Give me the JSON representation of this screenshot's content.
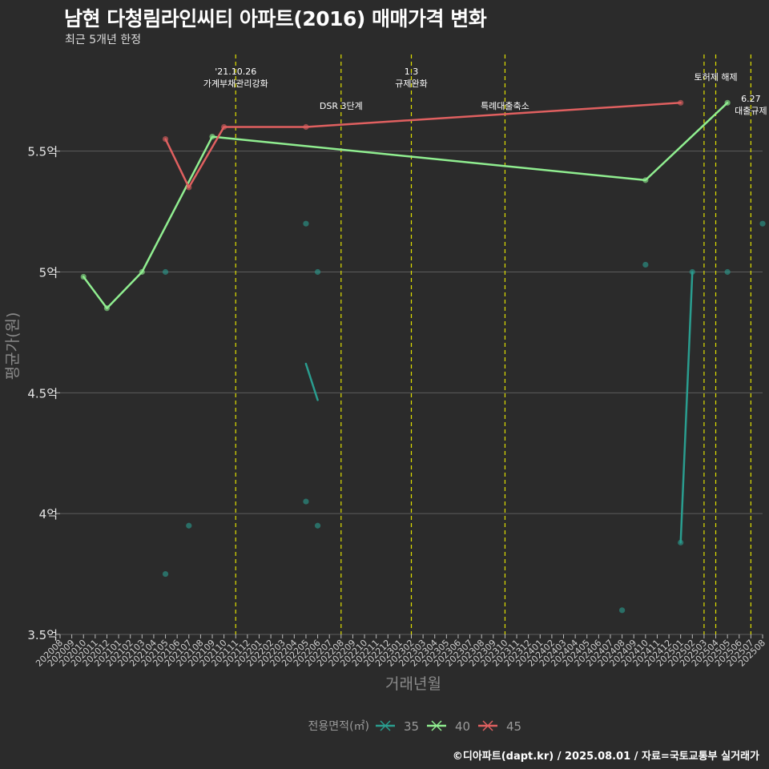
{
  "chart_data": {
    "type": "line",
    "title": "남현 다청림라인씨티 아파트(2016) 매매가격 변화",
    "subtitle": "최근 5개년 한정",
    "xlabel": "거래년월",
    "ylabel": "평균가(원)",
    "ylim": [
      3.5,
      5.9
    ],
    "yticks": [
      {
        "value": 3.5,
        "label": "3.5억"
      },
      {
        "value": 4.0,
        "label": "4억"
      },
      {
        "value": 4.5,
        "label": "4.5억"
      },
      {
        "value": 5.0,
        "label": "5억"
      },
      {
        "value": 5.5,
        "label": "5.5억"
      }
    ],
    "categories": [
      "202008",
      "202009",
      "202010",
      "202011",
      "202012",
      "202101",
      "202102",
      "202103",
      "202104",
      "202105",
      "202106",
      "202107",
      "202108",
      "202109",
      "202110",
      "202111",
      "202112",
      "202201",
      "202202",
      "202203",
      "202204",
      "202205",
      "202206",
      "202207",
      "202208",
      "202209",
      "202210",
      "202211",
      "202212",
      "202301",
      "202302",
      "202303",
      "202304",
      "202305",
      "202306",
      "202307",
      "202308",
      "202309",
      "202310",
      "202311",
      "202312",
      "202401",
      "202402",
      "202403",
      "202404",
      "202405",
      "202406",
      "202407",
      "202408",
      "202409",
      "202410",
      "202411",
      "202412",
      "202501",
      "202502",
      "202503",
      "202504",
      "202505",
      "202506",
      "202507",
      "202508"
    ],
    "series": [
      {
        "name": "35",
        "color": "#2a9d8f",
        "line_segments": [
          [
            [
              21,
              4.62
            ],
            [
              22,
              4.47
            ]
          ],
          [
            [
              53,
              3.88
            ],
            [
              54,
              5.0
            ]
          ]
        ],
        "points": [
          [
            9,
            5.0
          ],
          [
            9,
            3.75
          ],
          [
            11,
            3.95
          ],
          [
            21,
            5.2
          ],
          [
            21,
            4.05
          ],
          [
            22,
            5.0
          ],
          [
            22,
            3.95
          ],
          [
            48,
            3.6
          ],
          [
            50,
            5.03
          ],
          [
            53,
            3.88
          ],
          [
            54,
            5.0
          ],
          [
            57,
            5.0
          ],
          [
            60,
            5.2
          ]
        ]
      },
      {
        "name": "40",
        "color": "#90ee90",
        "line_segments": [
          [
            [
              2,
              4.98
            ],
            [
              4,
              4.85
            ],
            [
              7,
              5.0
            ],
            [
              13,
              5.56
            ],
            [
              50,
              5.38
            ],
            [
              57,
              5.7
            ]
          ]
        ],
        "points": [
          [
            2,
            4.98
          ],
          [
            4,
            4.85
          ],
          [
            7,
            5.0
          ],
          [
            13,
            5.56
          ],
          [
            50,
            5.38
          ],
          [
            57,
            5.7
          ]
        ]
      },
      {
        "name": "45",
        "color": "#e06060",
        "line_segments": [
          [
            [
              9,
              5.55
            ],
            [
              11,
              5.35
            ],
            [
              14,
              5.6
            ],
            [
              21,
              5.6
            ],
            [
              53,
              5.7
            ]
          ]
        ],
        "points": [
          [
            9,
            5.55
          ],
          [
            11,
            5.35
          ],
          [
            14,
            5.6
          ],
          [
            21,
            5.6
          ],
          [
            53,
            5.7
          ]
        ]
      }
    ],
    "events": [
      {
        "index": 15,
        "lines": [
          "'21.10.26",
          "가계부채관리강화"
        ],
        "row": 0
      },
      {
        "index": 24,
        "lines": [
          "DSR 3단계"
        ],
        "row": 2
      },
      {
        "index": 30,
        "lines": [
          "1.3",
          "규제완화"
        ],
        "row": 0
      },
      {
        "index": 38,
        "lines": [
          "특례대출축소"
        ],
        "row": 2
      },
      {
        "index": 55,
        "lines": [],
        "row": 0
      },
      {
        "index": 56,
        "lines": [
          "토허제 해제"
        ],
        "row": 1
      },
      {
        "index": 59,
        "lines": [
          "6.27",
          "대출규제"
        ],
        "row": 3
      }
    ],
    "legend": {
      "title": "전용면적(㎡)",
      "position": "bottom"
    }
  },
  "caption": "©디아파트(dapt.kr) / 2025.08.01 / 자료=국토교통부 실거래가"
}
